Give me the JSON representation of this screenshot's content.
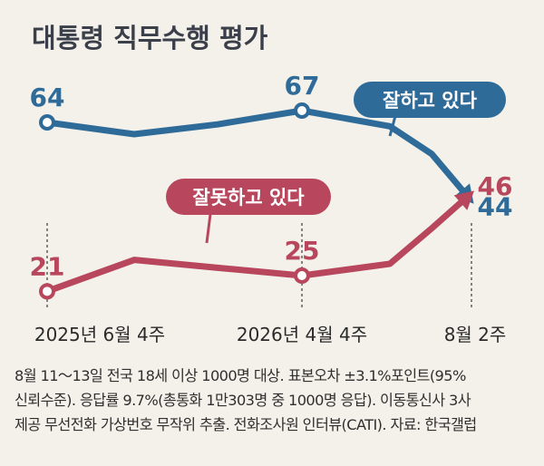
{
  "title": "대통령 직무수행 평가",
  "chart_data": {
    "type": "line",
    "x_tick_labels": [
      "2025년 6월 4주",
      "2026년 4월 4주",
      "8월 2주"
    ],
    "series": [
      {
        "name": "잘하고 있다",
        "color": "#2f6b99",
        "values": [
          64,
          61,
          63.5,
          67,
          63,
          56,
          44
        ],
        "labeled": [
          {
            "index": 0,
            "text": "64"
          },
          {
            "index": 3,
            "text": "67"
          },
          {
            "index": 6,
            "text": "44"
          }
        ]
      },
      {
        "name": "잘못하고 있다",
        "color": "#b8475d",
        "values": [
          21,
          29,
          27,
          25,
          28,
          37,
          46
        ],
        "labeled": [
          {
            "index": 0,
            "text": "21"
          },
          {
            "index": 3,
            "text": "25"
          },
          {
            "index": 6,
            "text": "46"
          }
        ]
      }
    ],
    "annotations": {
      "approve": "잘하고 있다",
      "disapprove": "잘못하고 있다"
    }
  },
  "footnote": [
    "8월 11～13일 전국 18세 이상 1000명 대상. 표본오차 ±3.1%포인트(95%",
    "신뢰수준). 응답률 9.7%(총통화 1만303명 중 1000명 응답). 이동통신사 3사",
    "제공 무선전화 가상번호 무작위 추출. 전화조사원 인터뷰(CATI). 자료: 한국갤럽"
  ]
}
